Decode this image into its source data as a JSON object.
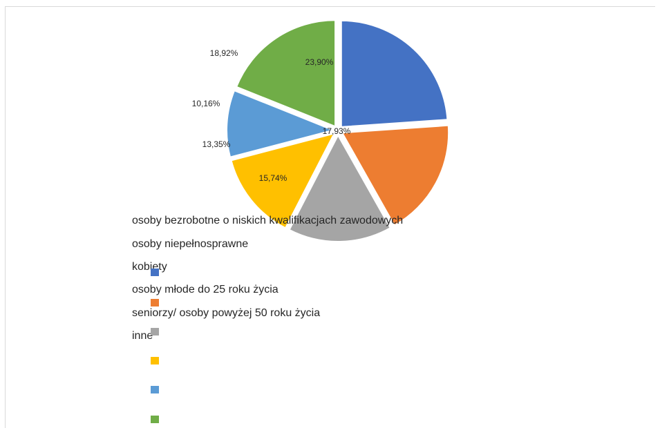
{
  "chart_data": {
    "type": "pie",
    "title": "",
    "slices": [
      {
        "label": "osoby bezrobotne o niskich kwalifikacjach zawodowych",
        "value": 23.9,
        "value_label": "23,90%",
        "color": "#4472C4"
      },
      {
        "label": "osoby niepełnosprawne",
        "value": 17.93,
        "value_label": "17,93%",
        "color": "#ED7D31"
      },
      {
        "label": "kobiety",
        "value": 15.74,
        "value_label": "15,74%",
        "color": "#A5A5A5"
      },
      {
        "label": "osoby młode do 25 roku życia",
        "value": 13.35,
        "value_label": "13,35%",
        "color": "#FFC000"
      },
      {
        "label": "seniorzy/ osoby powyżej 50 roku życia",
        "value": 10.16,
        "value_label": "10,16%",
        "color": "#5B9BD5"
      },
      {
        "label": "inne",
        "value": 18.92,
        "value_label": "18,92%",
        "color": "#70AD47"
      }
    ],
    "exploded": true,
    "legend_position": "bottom-left"
  }
}
